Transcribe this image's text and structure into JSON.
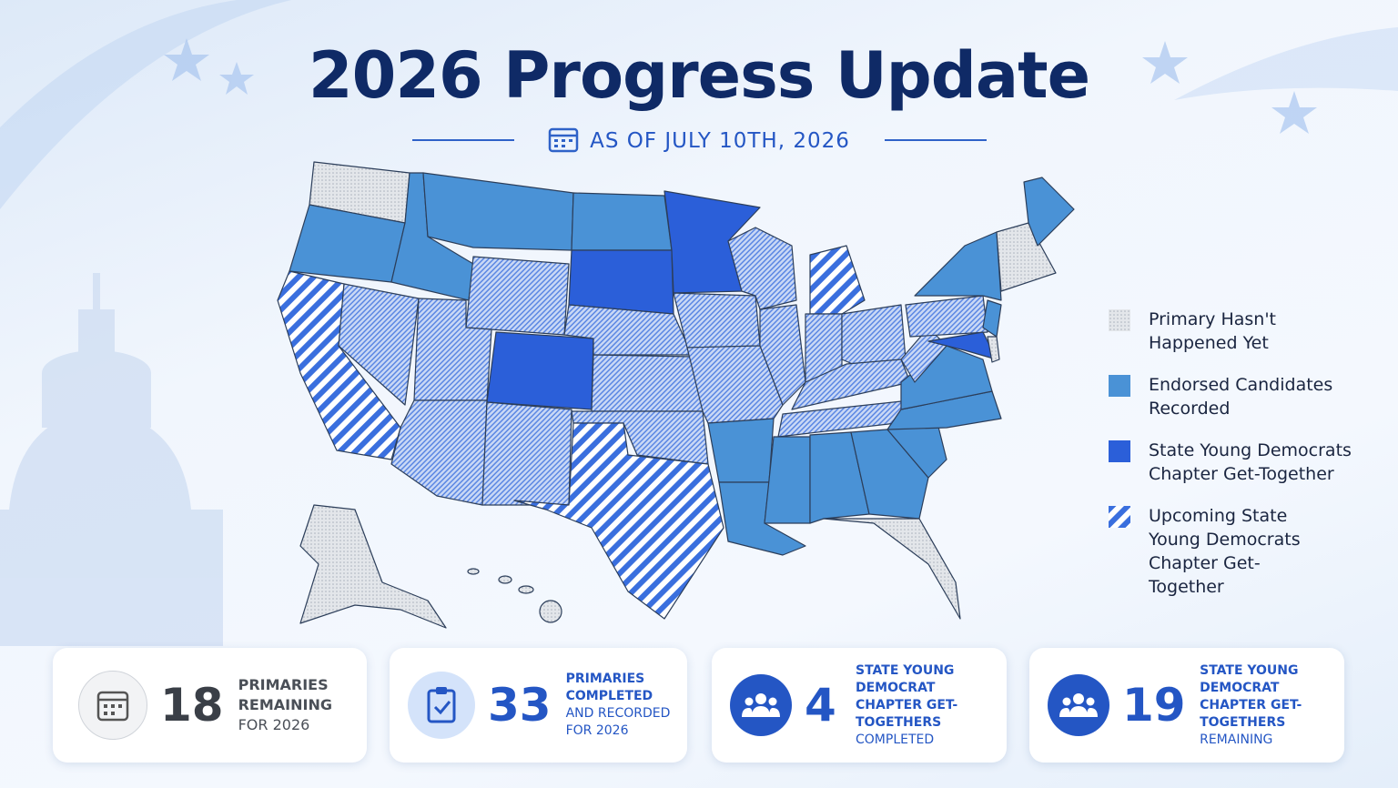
{
  "header": {
    "title": "2026 Progress Update",
    "date": "AS OF JULY 10TH, 2026"
  },
  "legend": [
    {
      "label": "Primary Hasn't Happened Yet"
    },
    {
      "label": "Endorsed Candidates Recorded"
    },
    {
      "label": "State Young Democrats Chapter Get-Together"
    },
    {
      "label": "Upcoming State Young Democrats Chapter Get-Together"
    }
  ],
  "stats": [
    {
      "number": 18,
      "title": "PRIMARIES REMAINING",
      "note": "FOR 2026"
    },
    {
      "number": 33,
      "title": "PRIMARIES COMPLETED",
      "note": "AND RECORDED FOR 2026"
    },
    {
      "number": 4,
      "title": "STATE YOUNG DEMOCRAT CHAPTER GET-TOGETHERS",
      "note": "COMPLETED"
    },
    {
      "number": 19,
      "title": "STATE YOUNG DEMOCRAT CHAPTER GET-TOGETHERS",
      "note": "REMAINING"
    }
  ]
}
